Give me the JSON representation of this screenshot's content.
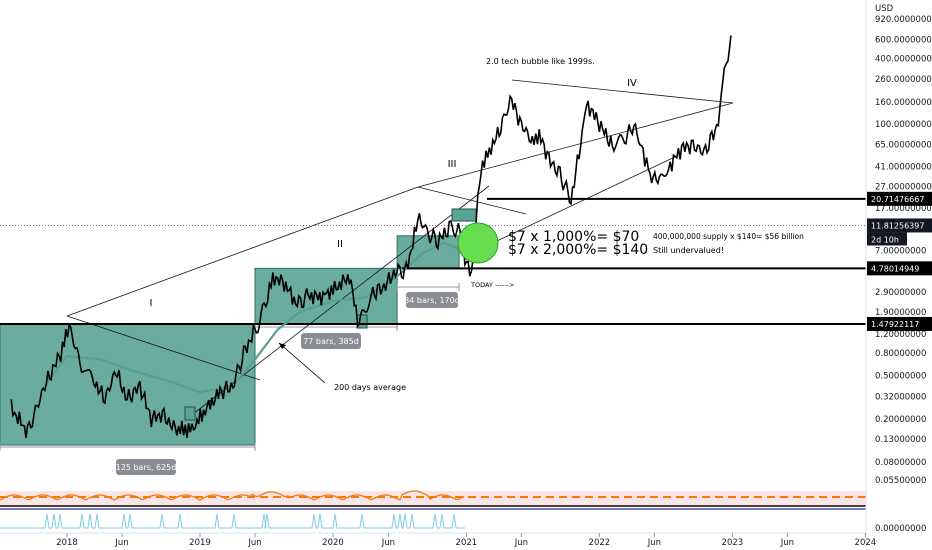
{
  "chart_data": {
    "type": "line",
    "currency": "USD",
    "scale": "log",
    "ylim": [
      0.02,
      920
    ],
    "y_ticks": [
      "920.00000000",
      "600.00000000",
      "400.00000000",
      "260.00000000",
      "160.00000000",
      "100.00000000",
      "65.00000000",
      "41.00000000",
      "27.00000000",
      "17.00000000",
      "11.00000000",
      "7.00000000",
      "4.50000000",
      "2.90000000",
      "1.90000000",
      "1.20000000",
      "0.80000000",
      "0.50000000",
      "0.32000000",
      "0.20000000",
      "0.13000000",
      "0.08000000",
      "0.05500000"
    ],
    "y_tick_values": [
      920,
      600,
      400,
      260,
      160,
      100,
      65,
      41,
      27,
      17,
      11,
      7,
      4.5,
      2.9,
      1.9,
      1.2,
      0.8,
      0.5,
      0.32,
      0.2,
      0.13,
      0.08,
      0.055
    ],
    "x_ticks": [
      "2018",
      "Jun",
      "2019",
      "Jun",
      "2020",
      "Jun",
      "2021",
      "Jun",
      "2022",
      "Jun",
      "2023",
      "Jun",
      "2024"
    ],
    "x_tick_dates": [
      "2018-01-01",
      "2018-06-01",
      "2019-01-01",
      "2019-06-01",
      "2020-01-01",
      "2020-06-01",
      "2021-01-01",
      "2021-06-01",
      "2022-01-01",
      "2022-06-01",
      "2023-01-01",
      "2023-06-01",
      "2024-01-01"
    ],
    "price_series": {
      "x": [
        "2017-08-01",
        "2017-09-15",
        "2017-11-01",
        "2017-12-15",
        "2018-01-07",
        "2018-02-10",
        "2018-03-15",
        "2018-04-15",
        "2018-05-15",
        "2018-06-15",
        "2018-07-20",
        "2018-08-20",
        "2018-09-20",
        "2018-10-25",
        "2018-12-10",
        "2019-01-20",
        "2019-02-25",
        "2019-04-01",
        "2019-05-01",
        "2019-06-01",
        "2019-06-26",
        "2019-07-20",
        "2019-08-20",
        "2019-09-25",
        "2019-10-25",
        "2019-11-30",
        "2020-01-10",
        "2020-02-15",
        "2020-03-13",
        "2020-04-15",
        "2020-05-20",
        "2020-06-20",
        "2020-07-20",
        "2020-08-25",
        "2020-09-15",
        "2020-10-15",
        "2020-11-15",
        "2020-12-10",
        "2020-12-28",
        "2021-01-15",
        "2021-02-10",
        "2021-03-10",
        "2021-04-10",
        "2021-05-01",
        "2021-06-01",
        "2021-07-01",
        "2021-07-20",
        "2021-08-20",
        "2021-09-15",
        "2021-10-15",
        "2021-11-15",
        "2021-12-01",
        "2022-01-10",
        "2022-02-10",
        "2022-03-15",
        "2022-04-10",
        "2022-05-01",
        "2022-05-20",
        "2022-06-15",
        "2022-07-10",
        "2022-08-15",
        "2022-09-15",
        "2022-10-15",
        "2022-11-10",
        "2022-11-28",
        "2022-12-10",
        "2022-12-20",
        "2022-12-28"
      ],
      "y": [
        0.25,
        0.15,
        0.4,
        0.8,
        1.4,
        0.6,
        0.45,
        0.3,
        0.55,
        0.3,
        0.4,
        0.2,
        0.22,
        0.16,
        0.16,
        0.25,
        0.35,
        0.4,
        0.8,
        1.3,
        2.0,
        4.0,
        3.5,
        2.2,
        2.7,
        2.6,
        3.2,
        4.0,
        1.4,
        2.8,
        3.2,
        4.5,
        4.5,
        15.0,
        10.0,
        8.5,
        11.0,
        11.5,
        6.0,
        4.0,
        40.0,
        60.0,
        100.0,
        175.0,
        100.0,
        70.0,
        80.0,
        45.0,
        35.0,
        20.0,
        80.0,
        150.0,
        90.0,
        60.0,
        80.0,
        95.0,
        55.0,
        35.0,
        30.0,
        40.0,
        60.0,
        65.0,
        55.0,
        80.0,
        120.0,
        300.0,
        420.0,
        650.0
      ]
    },
    "ma_series": {
      "label": "200 days average",
      "x": [
        "2017-11-01",
        "2018-01-01",
        "2018-04-01",
        "2018-07-01",
        "2018-10-01",
        "2019-01-01",
        "2019-04-01",
        "2019-06-01",
        "2019-08-01",
        "2019-10-01",
        "2020-01-01",
        "2020-04-01",
        "2020-07-01",
        "2020-09-01",
        "2020-11-01",
        "2020-12-20"
      ],
      "y": [
        0.4,
        0.75,
        0.7,
        0.55,
        0.45,
        0.35,
        0.4,
        0.7,
        1.3,
        1.9,
        2.4,
        2.6,
        4.2,
        6.5,
        8.2,
        7.0
      ]
    },
    "levels": [
      {
        "value": 20.71476667,
        "label": "20.71476667"
      },
      {
        "value": 4.78014949,
        "label": "4.78014949"
      },
      {
        "value": 1.47922117,
        "label": "1.47922117"
      }
    ],
    "current_price": "11.81256397",
    "countdown": "2d 10h",
    "range_boxes": [
      {
        "start": "2017-07-01",
        "end": "2019-06-01",
        "low": 0.115,
        "high": 1.48,
        "label": "125 bars, 625d"
      },
      {
        "start": "2019-06-01",
        "end": "2020-06-25",
        "low": 1.48,
        "high": 4.78,
        "label": "77 bars, 385d"
      },
      {
        "start": "2020-06-25",
        "end": "2020-12-12",
        "low": 4.78,
        "high": 9.5,
        "label": "34 bars, 170d"
      }
    ],
    "wave_labels": [
      "I",
      "II",
      "III",
      "IV"
    ],
    "annotations": {
      "bubble": "2.0 tech bubble like 1999s.",
      "target_1": "$7 x 1,000%= $70",
      "target_2": "$7 x 2,000%= $140",
      "supply": "400,000,000 supply x $140= $56 billion",
      "undervalued": "Still undervalued!",
      "today": "TODAY ------>",
      "ma_label": "200 days average"
    },
    "colors": {
      "box_fill": "#5aa495",
      "box_stroke": "#2f6e62",
      "ma_line": "#5a9e8e",
      "circle_fill": "#66dd4f",
      "rsi_line": "#ef7d14",
      "rsi_dashed": "#f57c00",
      "signal_line": "#7fcbe6",
      "tag_bg": "#131722"
    }
  }
}
